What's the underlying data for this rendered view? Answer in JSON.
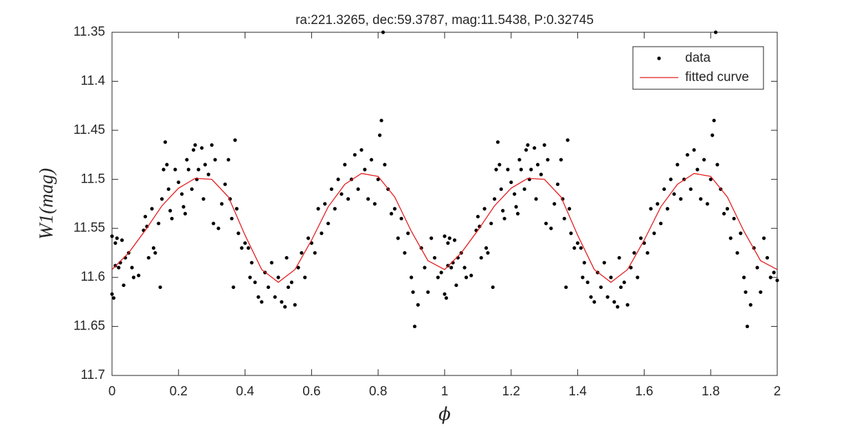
{
  "chart_data": {
    "type": "scatter",
    "title": "ra:221.3265, dec:59.3787, mag:11.5438, P:0.32745",
    "x_label": "ϕ",
    "y_label": "W1(mag)",
    "xlim": [
      0,
      2
    ],
    "xticks": [
      0,
      0.2,
      0.4,
      0.6,
      0.8,
      1,
      1.2,
      1.4,
      1.6,
      1.8,
      2
    ],
    "ylim": [
      11.35,
      11.7
    ],
    "yticks": [
      11.35,
      11.4,
      11.45,
      11.5,
      11.55,
      11.6,
      11.65,
      11.7
    ],
    "y_reversed": true,
    "legend": "upper-right",
    "series": [
      {
        "name": "data",
        "type": "scatter",
        "color": "#000000",
        "x": [
          0,
          0,
          0.005,
          0.01,
          0.01,
          0.015,
          0.02,
          0.025,
          0.03,
          0.035,
          0.04,
          0.05,
          0.06,
          0.065,
          0.08,
          0.095,
          0.1,
          0.105,
          0.11,
          0.12,
          0.125,
          0.13,
          0.14,
          0.145,
          0.15,
          0.155,
          0.16,
          0.165,
          0.17,
          0.175,
          0.18,
          0.19,
          0.2,
          0.21,
          0.215,
          0.22,
          0.225,
          0.23,
          0.24,
          0.245,
          0.25,
          0.255,
          0.26,
          0.27,
          0.275,
          0.28,
          0.29,
          0.3,
          0.305,
          0.31,
          0.32,
          0.33,
          0.34,
          0.35,
          0.355,
          0.36,
          0.365,
          0.37,
          0.375,
          0.38,
          0.39,
          0.4,
          0.41,
          0.415,
          0.42,
          0.43,
          0.44,
          0.45,
          0.46,
          0.47,
          0.48,
          0.49,
          0.5,
          0.51,
          0.52,
          0.525,
          0.53,
          0.54,
          0.55,
          0.56,
          0.57,
          0.58,
          0.59,
          0.6,
          0.61,
          0.62,
          0.63,
          0.64,
          0.65,
          0.66,
          0.67,
          0.68,
          0.69,
          0.7,
          0.71,
          0.72,
          0.73,
          0.74,
          0.75,
          0.76,
          0.77,
          0.78,
          0.79,
          0.8,
          0.805,
          0.81,
          0.815,
          0.82,
          0.83,
          0.84,
          0.85,
          0.86,
          0.87,
          0.88,
          0.89,
          0.9,
          0.905,
          0.91,
          0.92,
          0.93,
          0.94,
          0.95,
          0.96,
          0.97,
          0.98,
          0.99,
          1,
          1,
          1.005,
          1.01,
          1.01,
          1.015,
          1.02,
          1.025,
          1.03,
          1.035,
          1.04,
          1.05,
          1.06,
          1.065,
          1.08,
          1.095,
          1.1,
          1.105,
          1.11,
          1.12,
          1.125,
          1.13,
          1.14,
          1.145,
          1.15,
          1.155,
          1.16,
          1.165,
          1.17,
          1.175,
          1.18,
          1.19,
          1.2,
          1.21,
          1.215,
          1.22,
          1.225,
          1.23,
          1.24,
          1.245,
          1.25,
          1.255,
          1.26,
          1.27,
          1.275,
          1.28,
          1.29,
          1.3,
          1.305,
          1.31,
          1.32,
          1.33,
          1.34,
          1.35,
          1.355,
          1.36,
          1.365,
          1.37,
          1.375,
          1.38,
          1.39,
          1.4,
          1.41,
          1.415,
          1.42,
          1.43,
          1.44,
          1.45,
          1.46,
          1.47,
          1.48,
          1.49,
          1.5,
          1.51,
          1.52,
          1.525,
          1.53,
          1.54,
          1.55,
          1.56,
          1.57,
          1.58,
          1.59,
          1.6,
          1.61,
          1.62,
          1.63,
          1.64,
          1.65,
          1.66,
          1.67,
          1.68,
          1.69,
          1.7,
          1.71,
          1.72,
          1.73,
          1.74,
          1.75,
          1.76,
          1.77,
          1.78,
          1.79,
          1.8,
          1.805,
          1.81,
          1.815,
          1.82,
          1.83,
          1.84,
          1.85,
          1.86,
          1.87,
          1.88,
          1.89,
          1.9,
          1.905,
          1.91,
          1.92,
          1.93,
          1.94,
          1.95,
          1.96,
          1.97,
          1.98,
          1.99,
          2
        ],
        "values": [
          11.558,
          11.617,
          11.621,
          11.588,
          11.565,
          11.56,
          11.59,
          11.585,
          11.562,
          11.608,
          11.58,
          11.575,
          11.59,
          11.6,
          11.598,
          11.552,
          11.538,
          11.548,
          11.58,
          11.53,
          11.57,
          11.575,
          11.545,
          11.61,
          11.52,
          11.49,
          11.462,
          11.485,
          11.51,
          11.532,
          11.54,
          11.49,
          11.503,
          11.515,
          11.528,
          11.535,
          11.48,
          11.49,
          11.51,
          11.47,
          11.465,
          11.5,
          11.49,
          11.468,
          11.52,
          11.485,
          11.495,
          11.465,
          11.545,
          11.48,
          11.55,
          11.525,
          11.505,
          11.48,
          11.52,
          11.54,
          11.61,
          11.46,
          11.53,
          11.555,
          11.57,
          11.565,
          11.57,
          11.6,
          11.585,
          11.605,
          11.62,
          11.625,
          11.595,
          11.61,
          11.585,
          11.62,
          11.6,
          11.625,
          11.63,
          11.58,
          11.61,
          11.605,
          11.628,
          11.59,
          11.575,
          11.6,
          11.56,
          11.565,
          11.575,
          11.53,
          11.555,
          11.525,
          11.545,
          11.51,
          11.53,
          11.5,
          11.515,
          11.485,
          11.52,
          11.5,
          11.475,
          11.51,
          11.47,
          11.49,
          11.52,
          11.48,
          11.525,
          11.5,
          11.455,
          11.44,
          11.35,
          11.485,
          11.51,
          11.535,
          11.53,
          11.56,
          11.54,
          11.575,
          11.555,
          11.6,
          11.615,
          11.65,
          11.628,
          11.57,
          11.59,
          11.615,
          11.56,
          11.58,
          11.6,
          11.595,
          11.558,
          11.617,
          11.621,
          11.588,
          11.565,
          11.56,
          11.59,
          11.585,
          11.562,
          11.608,
          11.58,
          11.575,
          11.59,
          11.6,
          11.598,
          11.552,
          11.538,
          11.548,
          11.58,
          11.53,
          11.57,
          11.575,
          11.545,
          11.61,
          11.52,
          11.49,
          11.462,
          11.485,
          11.51,
          11.532,
          11.54,
          11.49,
          11.503,
          11.515,
          11.528,
          11.535,
          11.48,
          11.49,
          11.51,
          11.47,
          11.465,
          11.5,
          11.49,
          11.468,
          11.52,
          11.485,
          11.495,
          11.465,
          11.545,
          11.48,
          11.55,
          11.525,
          11.505,
          11.48,
          11.52,
          11.54,
          11.61,
          11.46,
          11.53,
          11.555,
          11.57,
          11.565,
          11.57,
          11.6,
          11.585,
          11.605,
          11.62,
          11.625,
          11.595,
          11.61,
          11.585,
          11.62,
          11.6,
          11.625,
          11.63,
          11.58,
          11.61,
          11.605,
          11.628,
          11.59,
          11.575,
          11.6,
          11.56,
          11.565,
          11.575,
          11.53,
          11.555,
          11.525,
          11.545,
          11.51,
          11.53,
          11.5,
          11.515,
          11.485,
          11.52,
          11.5,
          11.475,
          11.51,
          11.47,
          11.49,
          11.52,
          11.48,
          11.525,
          11.5,
          11.455,
          11.44,
          11.35,
          11.485,
          11.51,
          11.535,
          11.53,
          11.56,
          11.54,
          11.575,
          11.555,
          11.6,
          11.615,
          11.65,
          11.628,
          11.57,
          11.59,
          11.615,
          11.56,
          11.58,
          11.6,
          11.595,
          11.603
        ]
      },
      {
        "name": "fitted curve",
        "type": "line",
        "color": "#e41a1c",
        "x": [
          0,
          0.05,
          0.1,
          0.15,
          0.2,
          0.25,
          0.3,
          0.35,
          0.4,
          0.45,
          0.5,
          0.55,
          0.6,
          0.65,
          0.7,
          0.75,
          0.8,
          0.85,
          0.9,
          0.95,
          1,
          1.05,
          1.1,
          1.15,
          1.2,
          1.25,
          1.3,
          1.35,
          1.4,
          1.45,
          1.5,
          1.55,
          1.6,
          1.65,
          1.7,
          1.75,
          1.8,
          1.85,
          1.9,
          1.95,
          2
        ],
        "values": [
          11.592,
          11.575,
          11.552,
          11.527,
          11.509,
          11.499,
          11.5,
          11.518,
          11.557,
          11.592,
          11.605,
          11.592,
          11.562,
          11.528,
          11.505,
          11.494,
          11.497,
          11.518,
          11.553,
          11.583,
          11.592,
          11.575,
          11.552,
          11.527,
          11.509,
          11.499,
          11.5,
          11.518,
          11.557,
          11.592,
          11.605,
          11.592,
          11.562,
          11.528,
          11.505,
          11.494,
          11.497,
          11.518,
          11.553,
          11.583,
          11.592
        ]
      }
    ]
  }
}
